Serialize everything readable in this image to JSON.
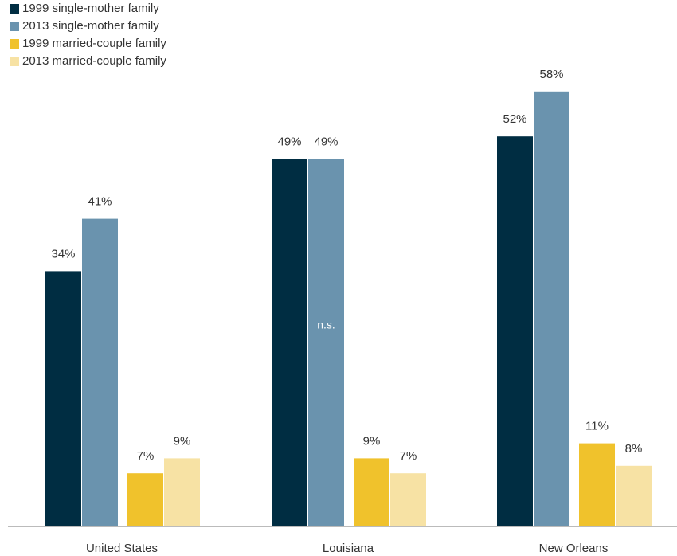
{
  "chart_data": {
    "type": "bar",
    "categories": [
      "United States",
      "Louisiana",
      "New Orleans"
    ],
    "series": [
      {
        "name": "1999 single-mother family",
        "color": "#002d42",
        "values": [
          34,
          49,
          52
        ],
        "value_labels": [
          "34%",
          "49%",
          "52%"
        ]
      },
      {
        "name": "2013 single-mother family",
        "color": "#6a93ae",
        "values": [
          41,
          49,
          58
        ],
        "value_labels": [
          "41%",
          "49%",
          "58%"
        ]
      },
      {
        "name": "1999 married-couple family",
        "color": "#f0c22c",
        "values": [
          7,
          9,
          11
        ],
        "value_labels": [
          "7%",
          "9%",
          "11%"
        ]
      },
      {
        "name": "2013 married-couple family",
        "color": "#f7e2a4",
        "values": [
          9,
          7,
          8
        ],
        "value_labels": [
          "9%",
          "7%",
          "8%"
        ]
      }
    ],
    "annotations": [
      "n.s."
    ],
    "ylim": [
      0,
      70
    ],
    "legend": "top-left"
  }
}
